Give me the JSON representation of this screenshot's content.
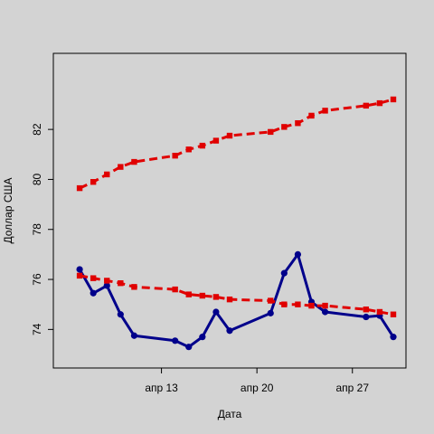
{
  "chart_data": {
    "type": "line",
    "xlabel": "Дата",
    "ylabel": "Доллар США",
    "x_dates": [
      "2020-04-07",
      "2020-04-08",
      "2020-04-09",
      "2020-04-10",
      "2020-04-11",
      "2020-04-14",
      "2020-04-15",
      "2020-04-16",
      "2020-04-17",
      "2020-04-18",
      "2020-04-21",
      "2020-04-22",
      "2020-04-23",
      "2020-04-24",
      "2020-04-25",
      "2020-04-28",
      "2020-04-29",
      "2020-04-30"
    ],
    "x_ticks": [
      {
        "date": "2020-04-13",
        "label": "апр 13"
      },
      {
        "date": "2020-04-20",
        "label": "апр 20"
      },
      {
        "date": "2020-04-27",
        "label": "апр 27"
      }
    ],
    "y_ticks": [
      74,
      76,
      78,
      80,
      82
    ],
    "xlim": [
      "2020-04-06",
      "2020-04-30"
    ],
    "ylim": [
      73,
      84.5
    ],
    "series": [
      {
        "style": "solid",
        "color": "#00008b",
        "marker": "circle",
        "values": [
          76.4,
          75.45,
          75.75,
          74.6,
          73.75,
          73.55,
          73.3,
          73.7,
          74.7,
          73.95,
          74.65,
          76.25,
          77.0,
          75.1,
          74.7,
          74.5,
          74.55,
          73.7
        ]
      },
      {
        "style": "dashed",
        "color": "#e00000",
        "marker": "square",
        "values": [
          79.65,
          79.9,
          80.2,
          80.5,
          80.7,
          80.95,
          81.2,
          81.35,
          81.55,
          81.75,
          81.9,
          82.1,
          82.25,
          82.55,
          82.75,
          82.95,
          83.05,
          83.2
        ]
      },
      {
        "style": "dashed",
        "color": "#e00000",
        "marker": "square",
        "values": [
          76.15,
          76.05,
          75.95,
          75.85,
          75.7,
          75.6,
          75.4,
          75.35,
          75.3,
          75.2,
          75.15,
          75.0,
          75.0,
          74.95,
          74.95,
          74.8,
          74.7,
          74.6
        ]
      }
    ]
  }
}
